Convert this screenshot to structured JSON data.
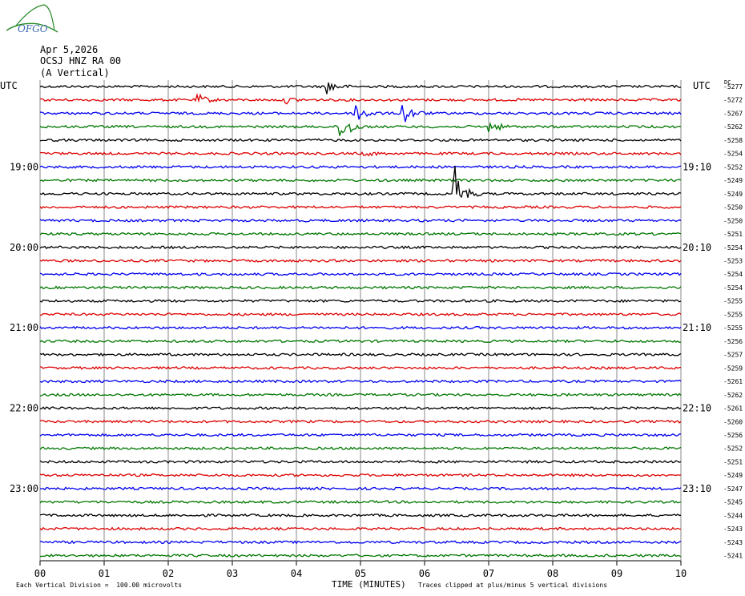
{
  "header": {
    "logo_text": "OFGO",
    "date": "Apr 5,2026",
    "station": "OCSJ HNZ RA 00",
    "component": "(A Vertical)"
  },
  "utc_left": "UTC",
  "utc_right": "UTC",
  "dc_label": "DC",
  "footer": {
    "scale_note": "Each Vertical Division =  100.00 microvolts",
    "xlabel": "TIME (MINUTES)",
    "clip_note": "Traces clipped at plus/minus 5 vertical divisions"
  },
  "chart_data": {
    "type": "line",
    "title": "OCSJ HNZ RA 00",
    "xlabel": "TIME (MINUTES)",
    "x_ticks": [
      "00",
      "01",
      "02",
      "03",
      "04",
      "05",
      "06",
      "07",
      "08",
      "09",
      "10"
    ],
    "xlim": [
      0,
      10
    ],
    "trace_colors": [
      "#000000",
      "#dd0000",
      "#0000ee",
      "#007700"
    ],
    "left_time_labels": [
      {
        "trace": 6,
        "label": "19:00"
      },
      {
        "trace": 12,
        "label": "20:00"
      },
      {
        "trace": 18,
        "label": "21:00"
      },
      {
        "trace": 24,
        "label": "22:00"
      },
      {
        "trace": 30,
        "label": "23:00"
      }
    ],
    "right_time_labels": [
      {
        "trace": 6,
        "label": "19:10"
      },
      {
        "trace": 12,
        "label": "20:10"
      },
      {
        "trace": 18,
        "label": "21:10"
      },
      {
        "trace": 24,
        "label": "22:10"
      },
      {
        "trace": 30,
        "label": "23:10"
      }
    ],
    "dc_offsets": [
      "-5277",
      "-5272",
      "-5267",
      "-5262",
      "-5258",
      "-5254",
      "-5252",
      "-5249",
      "-5249",
      "-5250",
      "-5250",
      "-5251",
      "-5254",
      "-5253",
      "-5254",
      "-5254",
      "-5255",
      "-5255",
      "-5255",
      "-5256",
      "-5257",
      "-5259",
      "-5261",
      "-5262",
      "-5261",
      "-5260",
      "-5256",
      "-5252",
      "-5251",
      "-5249",
      "-5247",
      "-5245",
      "-5244",
      "-5243",
      "-5243",
      "-5241"
    ],
    "events": [
      {
        "trace": 0,
        "minute": 4.5,
        "amplitude": 0.5
      },
      {
        "trace": 1,
        "minute": 2.5,
        "amplitude": 0.3
      },
      {
        "trace": 1,
        "minute": 3.85,
        "amplitude": 0.2
      },
      {
        "trace": 2,
        "minute": 4.95,
        "amplitude": 0.9
      },
      {
        "trace": 2,
        "minute": 5.7,
        "amplitude": 0.7
      },
      {
        "trace": 3,
        "minute": 4.72,
        "amplitude": 1.2
      },
      {
        "trace": 3,
        "minute": 7.05,
        "amplitude": 0.4
      },
      {
        "trace": 5,
        "minute": 5.1,
        "amplitude": 0.15
      },
      {
        "trace": 8,
        "minute": 6.48,
        "amplitude": 2.0
      }
    ]
  }
}
